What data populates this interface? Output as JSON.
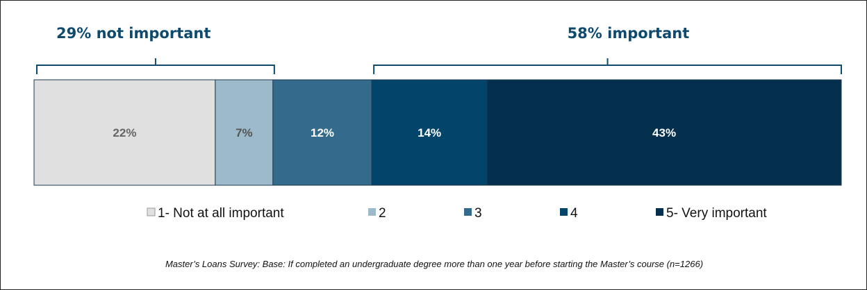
{
  "chart_data": {
    "type": "bar",
    "orientation": "horizontal",
    "stacked": true,
    "unit": "%",
    "categories": [
      "1- Not at all important",
      "2",
      "3",
      "4",
      "5- Very important"
    ],
    "values": [
      22,
      7,
      12,
      14,
      43
    ],
    "value_labels": [
      "22%",
      "7%",
      "12%",
      "14%",
      "43%"
    ],
    "colors": [
      "#e0e0e0",
      "#9dbacb",
      "#346b8c",
      "#03446b",
      "#042f4d"
    ],
    "label_colors": [
      "#666666",
      "#555555",
      "#ffffff",
      "#ffffff",
      "#ffffff"
    ],
    "groups": [
      {
        "label": "29% not important",
        "from": 0,
        "to": 1
      },
      {
        "label": "58% important",
        "from": 3,
        "to": 4
      }
    ],
    "legend": {
      "placement": "bottom"
    },
    "grid": false
  },
  "footnote": "Master’s Loans Survey: Base: If completed an undergraduate degree more than one year before starting the Master’s course (n=1266)"
}
